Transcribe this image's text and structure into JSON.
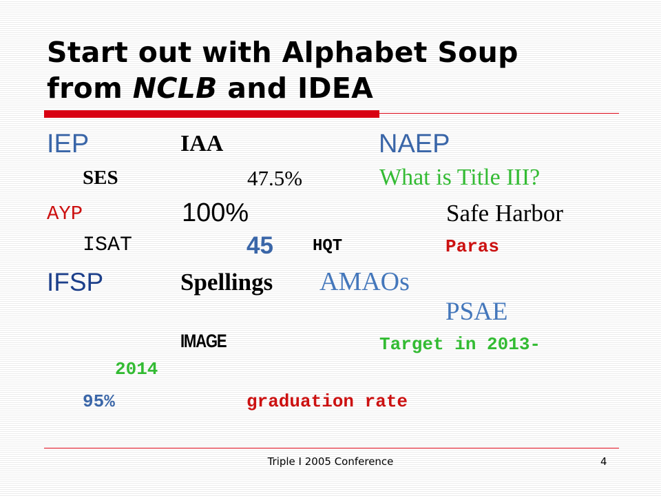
{
  "slide": {
    "title": {
      "part1": "Start out with Alphabet Soup",
      "part2": "from ",
      "part3": "NCLB",
      "part4": " and IDEA"
    },
    "terms": {
      "iep": "IEP",
      "iaa": "IAA",
      "naep": "NAEP",
      "ses": "SES",
      "pct_47_5": "47.5%",
      "title_iii": "What is Title III?",
      "ayp": "AYP",
      "pct_100": "100%",
      "safe_harbor": "Safe Harbor",
      "isat": "ISAT",
      "num_45": "45",
      "hqt": "HQT",
      "paras": "Paras",
      "ifsp": "IFSP",
      "spellings": "Spellings",
      "amaos": "AMAOs",
      "psae": "PSAE",
      "image": "IMAGE",
      "target_line1": "Target in 2013-",
      "target_line2": "2014",
      "pct_95": "95%",
      "graduation_rate": "graduation rate"
    },
    "footer": "Triple I 2005 Conference",
    "page_number": "4",
    "colors": {
      "accent_red": "#d80012",
      "blue": "#3a66a8",
      "green": "#33bb33",
      "dark_red": "#cc1111",
      "ifsp_blue": "#1c3f8a",
      "amaos_blue": "#4477bb"
    }
  }
}
